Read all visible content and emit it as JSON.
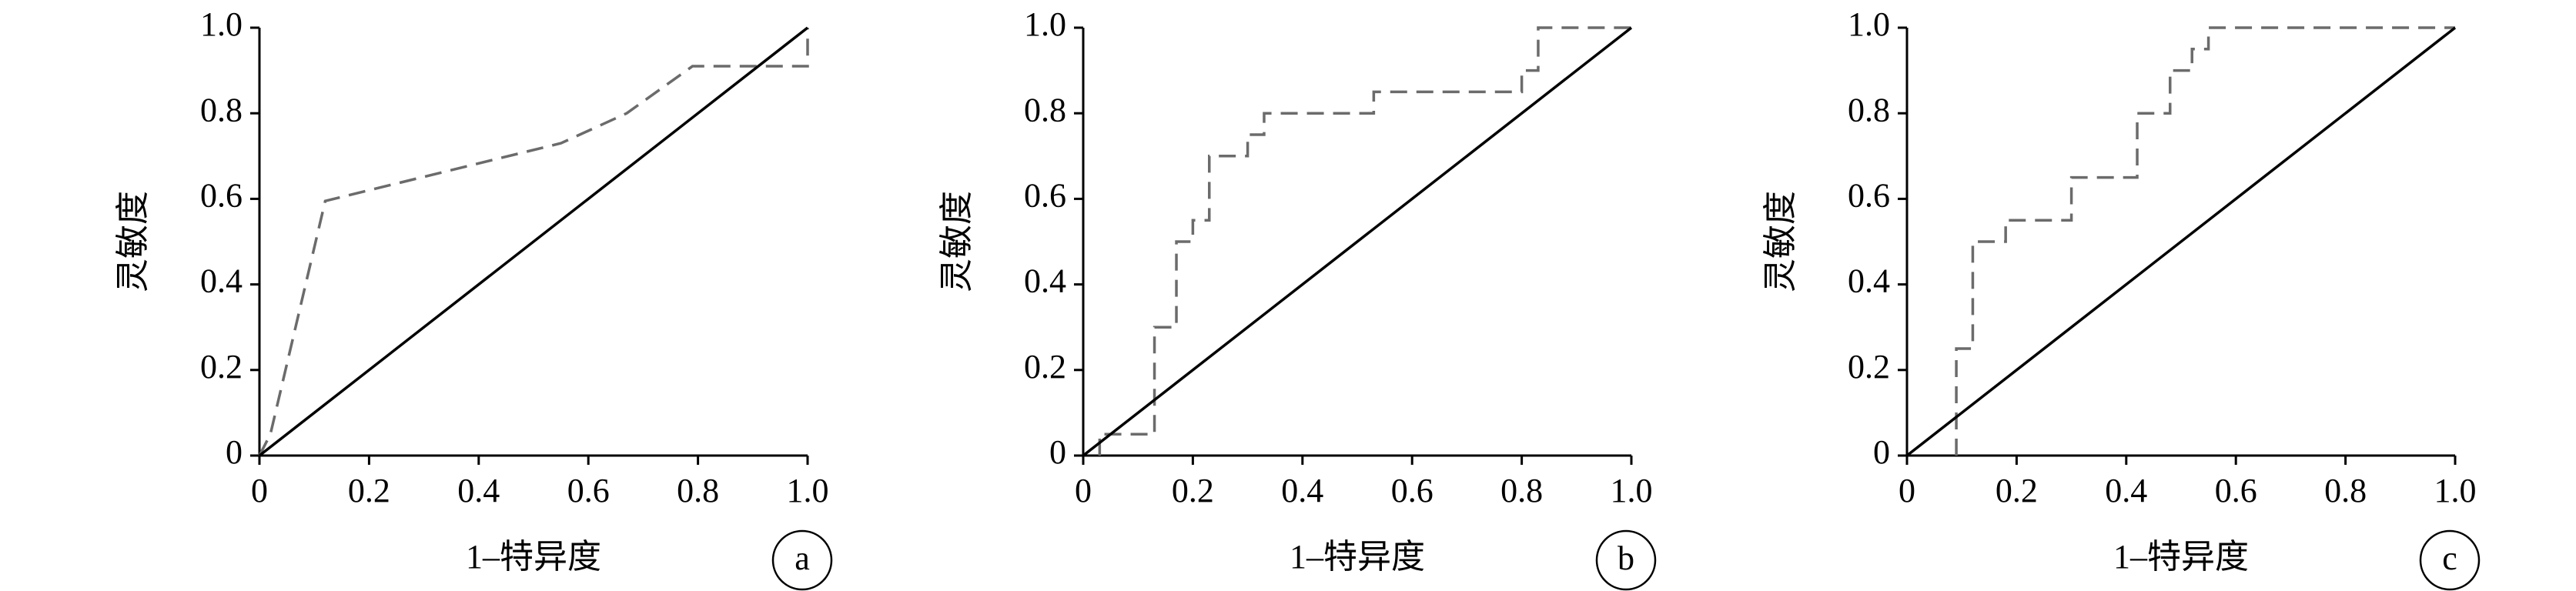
{
  "chart_data": [
    {
      "type": "line",
      "xlabel": "1–特异度",
      "ylabel": "灵敏度",
      "panel_label": "a",
      "xlim": [
        0,
        1
      ],
      "ylim": [
        0,
        1
      ],
      "xticks": [
        0,
        0.2,
        0.4,
        0.6,
        0.8,
        {
          "value": 1,
          "label": "1.0"
        }
      ],
      "yticks": [
        0,
        0.2,
        0.4,
        0.6,
        0.8,
        {
          "value": 1,
          "label": "1.0"
        }
      ],
      "series": [
        {
          "color": "#6b6b6b",
          "dash": "dashed",
          "x": [
            0,
            0.02,
            0.12,
            0.55,
            0.67,
            0.79,
            1,
            1
          ],
          "values": [
            0,
            0.05,
            0.595,
            0.73,
            0.8,
            0.91,
            0.91,
            1
          ]
        },
        {
          "color": "#000000",
          "dash": "solid",
          "x": [
            0,
            1
          ],
          "values": [
            0,
            1
          ]
        }
      ]
    },
    {
      "type": "line",
      "xlabel": "1–特异度",
      "ylabel": "灵敏度",
      "panel_label": "b",
      "xlim": [
        0,
        1
      ],
      "ylim": [
        0,
        1
      ],
      "xticks": [
        0,
        0.2,
        0.4,
        0.6,
        0.8,
        {
          "value": 1,
          "label": "1.0"
        }
      ],
      "yticks": [
        0,
        0.2,
        0.4,
        0.6,
        0.8,
        {
          "value": 1,
          "label": "1.0"
        }
      ],
      "series": [
        {
          "color": "#6b6b6b",
          "dash": "dashed",
          "x": [
            0.03,
            0.03,
            0.13,
            0.13,
            0.17,
            0.17,
            0.2,
            0.2,
            0.23,
            0.23,
            0.3,
            0.3,
            0.33,
            0.33,
            0.53,
            0.53,
            0.8,
            0.8,
            0.83,
            0.83,
            1
          ],
          "values": [
            0,
            0.05,
            0.05,
            0.3,
            0.3,
            0.5,
            0.5,
            0.55,
            0.55,
            0.7,
            0.7,
            0.75,
            0.75,
            0.8,
            0.8,
            0.85,
            0.85,
            0.9,
            0.9,
            1,
            1
          ]
        },
        {
          "color": "#000000",
          "dash": "solid",
          "x": [
            0,
            1
          ],
          "values": [
            0,
            1
          ]
        }
      ]
    },
    {
      "type": "line",
      "xlabel": "1–特异度",
      "ylabel": "灵敏度",
      "panel_label": "c",
      "xlim": [
        0,
        1
      ],
      "ylim": [
        0,
        1
      ],
      "xticks": [
        0,
        0.2,
        0.4,
        0.6,
        0.8,
        {
          "value": 1,
          "label": "1.0"
        }
      ],
      "yticks": [
        0,
        0.2,
        0.4,
        0.6,
        0.8,
        {
          "value": 1,
          "label": "1.0"
        }
      ],
      "series": [
        {
          "color": "#6b6b6b",
          "dash": "dashed",
          "x": [
            0.09,
            0.09,
            0.12,
            0.12,
            0.18,
            0.18,
            0.3,
            0.3,
            0.42,
            0.42,
            0.48,
            0.48,
            0.52,
            0.52,
            0.55,
            0.55,
            1
          ],
          "values": [
            0,
            0.25,
            0.25,
            0.5,
            0.5,
            0.55,
            0.55,
            0.65,
            0.65,
            0.8,
            0.8,
            0.9,
            0.9,
            0.95,
            0.95,
            1,
            1
          ]
        },
        {
          "color": "#000000",
          "dash": "solid",
          "x": [
            0,
            1
          ],
          "values": [
            0,
            1
          ]
        }
      ]
    }
  ]
}
